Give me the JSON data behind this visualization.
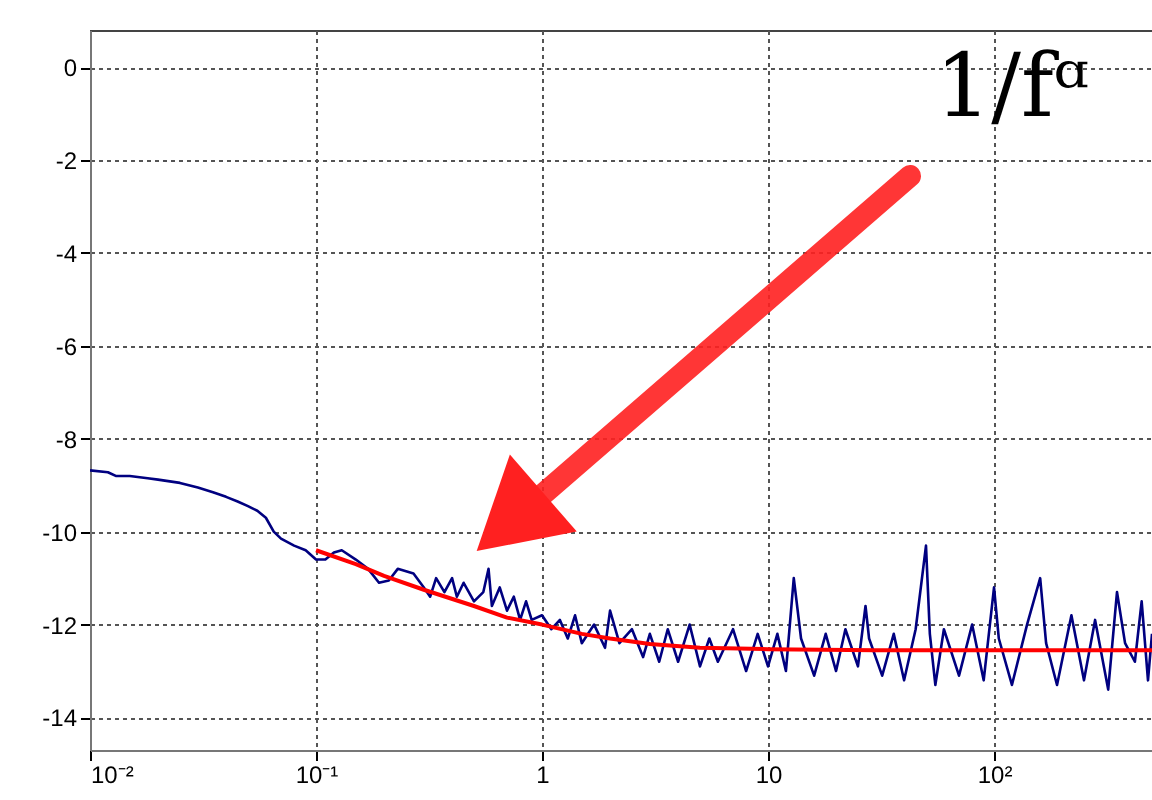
{
  "chart_data": {
    "type": "line",
    "log": "x",
    "grid": true,
    "line_style": "solid",
    "marker": "none",
    "xlim": [
      0.01,
      500
    ],
    "ylim": [
      -14.7,
      0.8
    ],
    "xticks": [
      {
        "value": 0.01,
        "label": "10⁻²"
      },
      {
        "value": 0.1,
        "label": "10⁻¹"
      },
      1,
      10,
      {
        "value": 100,
        "label": "10²"
      }
    ],
    "yticks": [
      -14,
      -12,
      -10,
      -8,
      -6,
      -4,
      -2,
      0
    ],
    "annotations": [
      "1/fᵅ"
    ],
    "series": [
      {
        "color": "#000080",
        "x": [
          0.01,
          0.012,
          0.013,
          0.015,
          0.018,
          0.02,
          0.025,
          0.03,
          0.035,
          0.04,
          0.045,
          0.05,
          0.055,
          0.06,
          0.065,
          0.07,
          0.08,
          0.09,
          0.1,
          0.11,
          0.12,
          0.13,
          0.15,
          0.17,
          0.19,
          0.21,
          0.23,
          0.27,
          0.3,
          0.32,
          0.34,
          0.37,
          0.4,
          0.42,
          0.45,
          0.5,
          0.55,
          0.58,
          0.6,
          0.65,
          0.7,
          0.75,
          0.8,
          0.85,
          0.9,
          1.0,
          1.1,
          1.2,
          1.3,
          1.4,
          1.5,
          1.7,
          1.9,
          2.0,
          2.2,
          2.5,
          2.8,
          3.0,
          3.3,
          3.6,
          4.0,
          4.5,
          5.0,
          5.5,
          6,
          7,
          8,
          9,
          10,
          11,
          12,
          13,
          14,
          16,
          18,
          20,
          22,
          25,
          27,
          28,
          32,
          36,
          40,
          45,
          50,
          52,
          55,
          60,
          70,
          80,
          90,
          100,
          105,
          120,
          140,
          160,
          170,
          190,
          220,
          250,
          280,
          320,
          350,
          380,
          420,
          450,
          480,
          500
        ],
        "values": [
          -8.68,
          -8.72,
          -8.8,
          -8.8,
          -8.85,
          -8.88,
          -8.95,
          -9.05,
          -9.15,
          -9.25,
          -9.35,
          -9.45,
          -9.55,
          -9.7,
          -10.0,
          -10.15,
          -10.3,
          -10.4,
          -10.6,
          -10.6,
          -10.45,
          -10.4,
          -10.6,
          -10.8,
          -11.1,
          -11.05,
          -10.8,
          -10.9,
          -11.2,
          -11.4,
          -11.0,
          -11.3,
          -11.0,
          -11.4,
          -11.1,
          -11.5,
          -11.3,
          -10.8,
          -11.6,
          -11.2,
          -11.7,
          -11.4,
          -11.9,
          -11.5,
          -11.9,
          -11.8,
          -12.1,
          -11.9,
          -12.3,
          -11.8,
          -12.4,
          -12.0,
          -12.5,
          -11.7,
          -12.4,
          -12.1,
          -12.7,
          -12.2,
          -12.8,
          -12.1,
          -12.8,
          -12.0,
          -12.9,
          -12.3,
          -12.8,
          -12.1,
          -13.0,
          -12.2,
          -12.9,
          -12.2,
          -13.0,
          -11.0,
          -12.3,
          -13.1,
          -12.2,
          -13.0,
          -12.1,
          -12.9,
          -11.6,
          -12.3,
          -13.1,
          -12.2,
          -13.2,
          -12.1,
          -10.3,
          -12.2,
          -13.3,
          -12.1,
          -13.1,
          -12.0,
          -13.2,
          -11.2,
          -12.3,
          -13.3,
          -12.0,
          -11.0,
          -12.4,
          -13.3,
          -11.8,
          -13.2,
          -11.9,
          -13.4,
          -11.3,
          -12.4,
          -12.8,
          -11.5,
          -13.2,
          -12.2
        ]
      },
      {
        "color": "#ff0000",
        "x": [
          0.1,
          0.15,
          0.2,
          0.3,
          0.5,
          0.7,
          1,
          1.5,
          2,
          3,
          5,
          10,
          30,
          100,
          500
        ],
        "values": [
          -10.4,
          -10.7,
          -10.95,
          -11.25,
          -11.6,
          -11.85,
          -12.0,
          -12.2,
          -12.3,
          -12.42,
          -12.5,
          -12.53,
          -12.55,
          -12.55,
          -12.55
        ]
      }
    ]
  }
}
